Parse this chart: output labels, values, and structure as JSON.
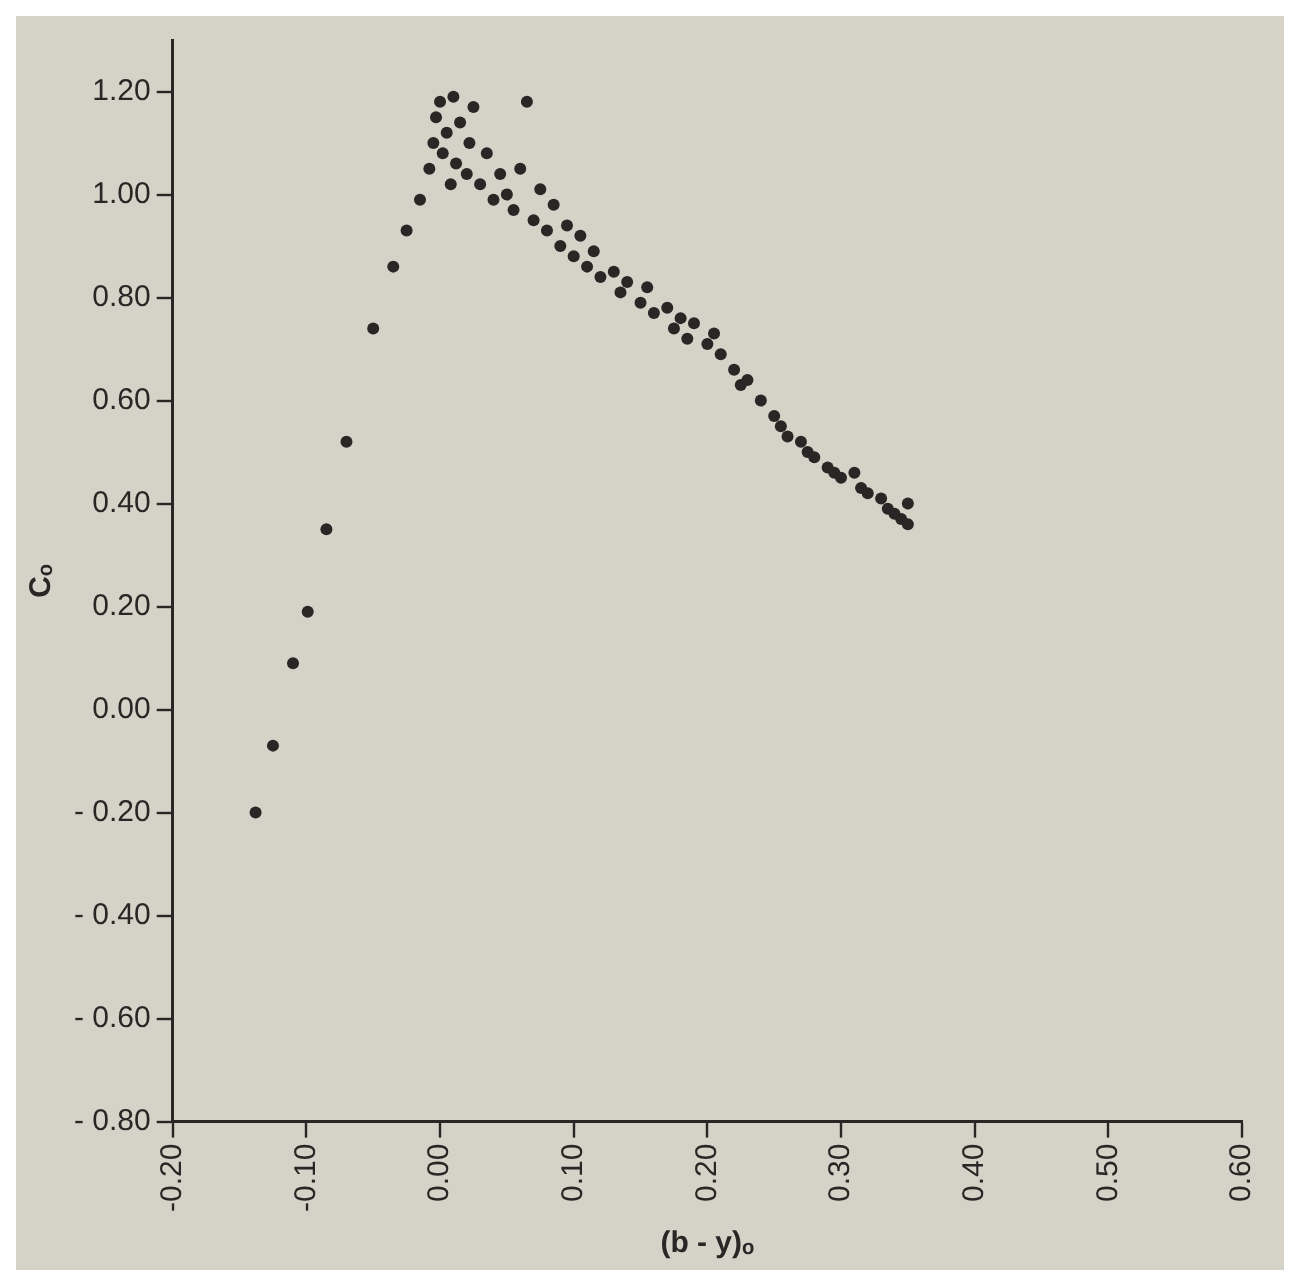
{
  "chart_data": {
    "type": "scatter",
    "xlabel": "(b - y)ₒ",
    "ylabel": "Cₒ",
    "marker": "circle",
    "grid": false,
    "legend": false,
    "xlim": [
      -0.2,
      0.6
    ],
    "ylim": [
      -0.8,
      1.3
    ],
    "xticks": [
      {
        "value": -0.2,
        "label": "-0.20"
      },
      {
        "value": -0.1,
        "label": "-0.10"
      },
      {
        "value": 0,
        "label": "0.00"
      },
      {
        "value": 0.1,
        "label": "0.10"
      },
      {
        "value": 0.2,
        "label": "0.20"
      },
      {
        "value": 0.3,
        "label": "0.30"
      },
      {
        "value": 0.4,
        "label": "0.40"
      },
      {
        "value": 0.5,
        "label": "0.50"
      },
      {
        "value": 0.6,
        "label": "0.60"
      }
    ],
    "yticks": [
      {
        "value": -0.8,
        "label": "- 0.80"
      },
      {
        "value": -0.6,
        "label": "- 0.60"
      },
      {
        "value": -0.4,
        "label": "- 0.40"
      },
      {
        "value": -0.2,
        "label": "- 0.20"
      },
      {
        "value": 0,
        "label": "0.00"
      },
      {
        "value": 0.2,
        "label": "0.20"
      },
      {
        "value": 0.4,
        "label": "0.40"
      },
      {
        "value": 0.6,
        "label": "0.60"
      },
      {
        "value": 0.8,
        "label": "0.80"
      },
      {
        "value": 1,
        "label": "1.00"
      },
      {
        "value": 1.2,
        "label": "1.20"
      }
    ],
    "series": [
      {
        "color": "#2a2626",
        "x": [
          -0.138,
          -0.125,
          -0.11,
          -0.099,
          -0.085,
          -0.07,
          -0.05,
          -0.035,
          -0.025,
          -0.015,
          -0.008,
          -0.005,
          -0.003,
          0.0,
          0.002,
          0.005,
          0.008,
          0.01,
          0.012,
          0.015,
          0.02,
          0.022,
          0.025,
          0.03,
          0.035,
          0.04,
          0.045,
          0.05,
          0.055,
          0.06,
          0.065,
          0.07,
          0.075,
          0.08,
          0.085,
          0.09,
          0.095,
          0.1,
          0.105,
          0.11,
          0.115,
          0.12,
          0.13,
          0.135,
          0.14,
          0.15,
          0.155,
          0.16,
          0.17,
          0.175,
          0.18,
          0.185,
          0.19,
          0.2,
          0.205,
          0.21,
          0.22,
          0.225,
          0.23,
          0.24,
          0.25,
          0.255,
          0.26,
          0.27,
          0.275,
          0.28,
          0.29,
          0.295,
          0.3,
          0.31,
          0.315,
          0.32,
          0.33,
          0.335,
          0.34,
          0.345,
          0.35,
          0.35
        ],
        "values": [
          -0.2,
          -0.07,
          0.09,
          0.19,
          0.35,
          0.52,
          0.74,
          0.86,
          0.93,
          0.99,
          1.05,
          1.1,
          1.15,
          1.18,
          1.08,
          1.12,
          1.02,
          1.19,
          1.06,
          1.14,
          1.04,
          1.1,
          1.17,
          1.02,
          1.08,
          0.99,
          1.04,
          1.0,
          0.97,
          1.05,
          1.18,
          0.95,
          1.01,
          0.93,
          0.98,
          0.9,
          0.94,
          0.88,
          0.92,
          0.86,
          0.89,
          0.84,
          0.85,
          0.81,
          0.83,
          0.79,
          0.82,
          0.77,
          0.78,
          0.74,
          0.76,
          0.72,
          0.75,
          0.71,
          0.73,
          0.69,
          0.66,
          0.63,
          0.64,
          0.6,
          0.57,
          0.55,
          0.53,
          0.52,
          0.5,
          0.49,
          0.47,
          0.46,
          0.45,
          0.46,
          0.43,
          0.42,
          0.41,
          0.39,
          0.38,
          0.37,
          0.4,
          0.36
        ]
      }
    ]
  }
}
